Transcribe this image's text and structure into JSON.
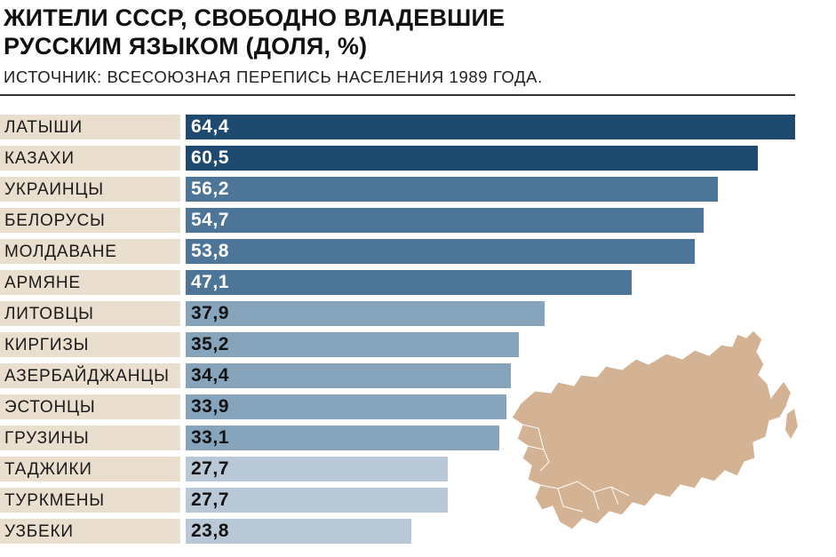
{
  "header": {
    "title_line1": "ЖИТЕЛИ СССР, СВОБОДНО ВЛАДЕВШИЕ",
    "title_line2": "РУССКИМ ЯЗЫКОМ (ДОЛЯ, %)",
    "source": "ИСТОЧНИК: ВСЕСОЮЗНАЯ ПЕРЕПИСЬ НАСЕЛЕНИЯ 1989 ГОДА."
  },
  "colors": {
    "label_bg": "#eadfcf",
    "dark": "#1f4a6f",
    "mid": "#4d7597",
    "light": "#86a5bc",
    "pale": "#b8c8d6",
    "map_fill": "#d3b393",
    "map_stroke": "#ffffff"
  },
  "chart_data": {
    "type": "bar",
    "orientation": "horizontal",
    "categories": [
      "ЛАТЫШИ",
      "КАЗАХИ",
      "УКРАИНЦЫ",
      "БЕЛОРУСЫ",
      "МОЛДАВАНЕ",
      "АРМЯНЕ",
      "ЛИТОВЦЫ",
      "КИРГИЗЫ",
      "АЗЕРБАЙДЖАНЦЫ",
      "ЭСТОНЦЫ",
      "ГРУЗИНЫ",
      "ТАДЖИКИ",
      "ТУРКМЕНЫ",
      "УЗБЕКИ"
    ],
    "values": [
      64.4,
      60.5,
      56.2,
      54.7,
      53.8,
      47.1,
      37.9,
      35.2,
      34.4,
      33.9,
      33.1,
      27.7,
      27.7,
      23.8
    ],
    "value_labels": [
      "64,4",
      "60,5",
      "56,2",
      "54,7",
      "53,8",
      "47,1",
      "37,9",
      "35,2",
      "34,4",
      "33,9",
      "33,1",
      "27,7",
      "27,7",
      "23,8"
    ],
    "tone": [
      "dark",
      "dark",
      "mid",
      "mid",
      "mid",
      "mid",
      "light",
      "light",
      "light",
      "light",
      "light",
      "pale",
      "pale",
      "pale"
    ],
    "xlim": [
      0,
      64.4
    ],
    "grid": false,
    "legend": "none"
  },
  "map": {
    "icon": "ussr-map-icon"
  }
}
